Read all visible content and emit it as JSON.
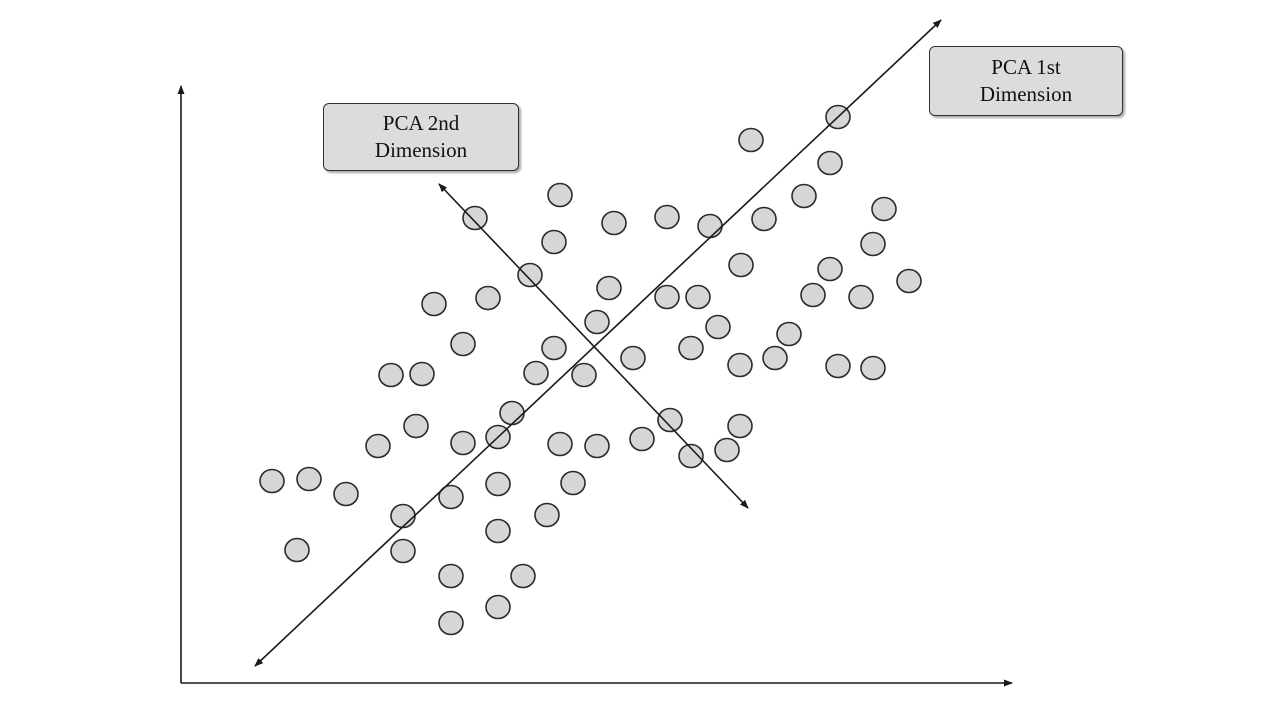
{
  "labels": {
    "pca_second": {
      "line1": "PCA 2nd",
      "line2": "Dimension"
    },
    "pca_first": {
      "line1": "PCA 1st",
      "line2": "Dimension"
    }
  },
  "colors": {
    "point_fill": "#d6d6d6",
    "point_stroke": "#2b2b2b",
    "line": "#1a1a1a",
    "label_bg": "#dcdcdc"
  }
}
